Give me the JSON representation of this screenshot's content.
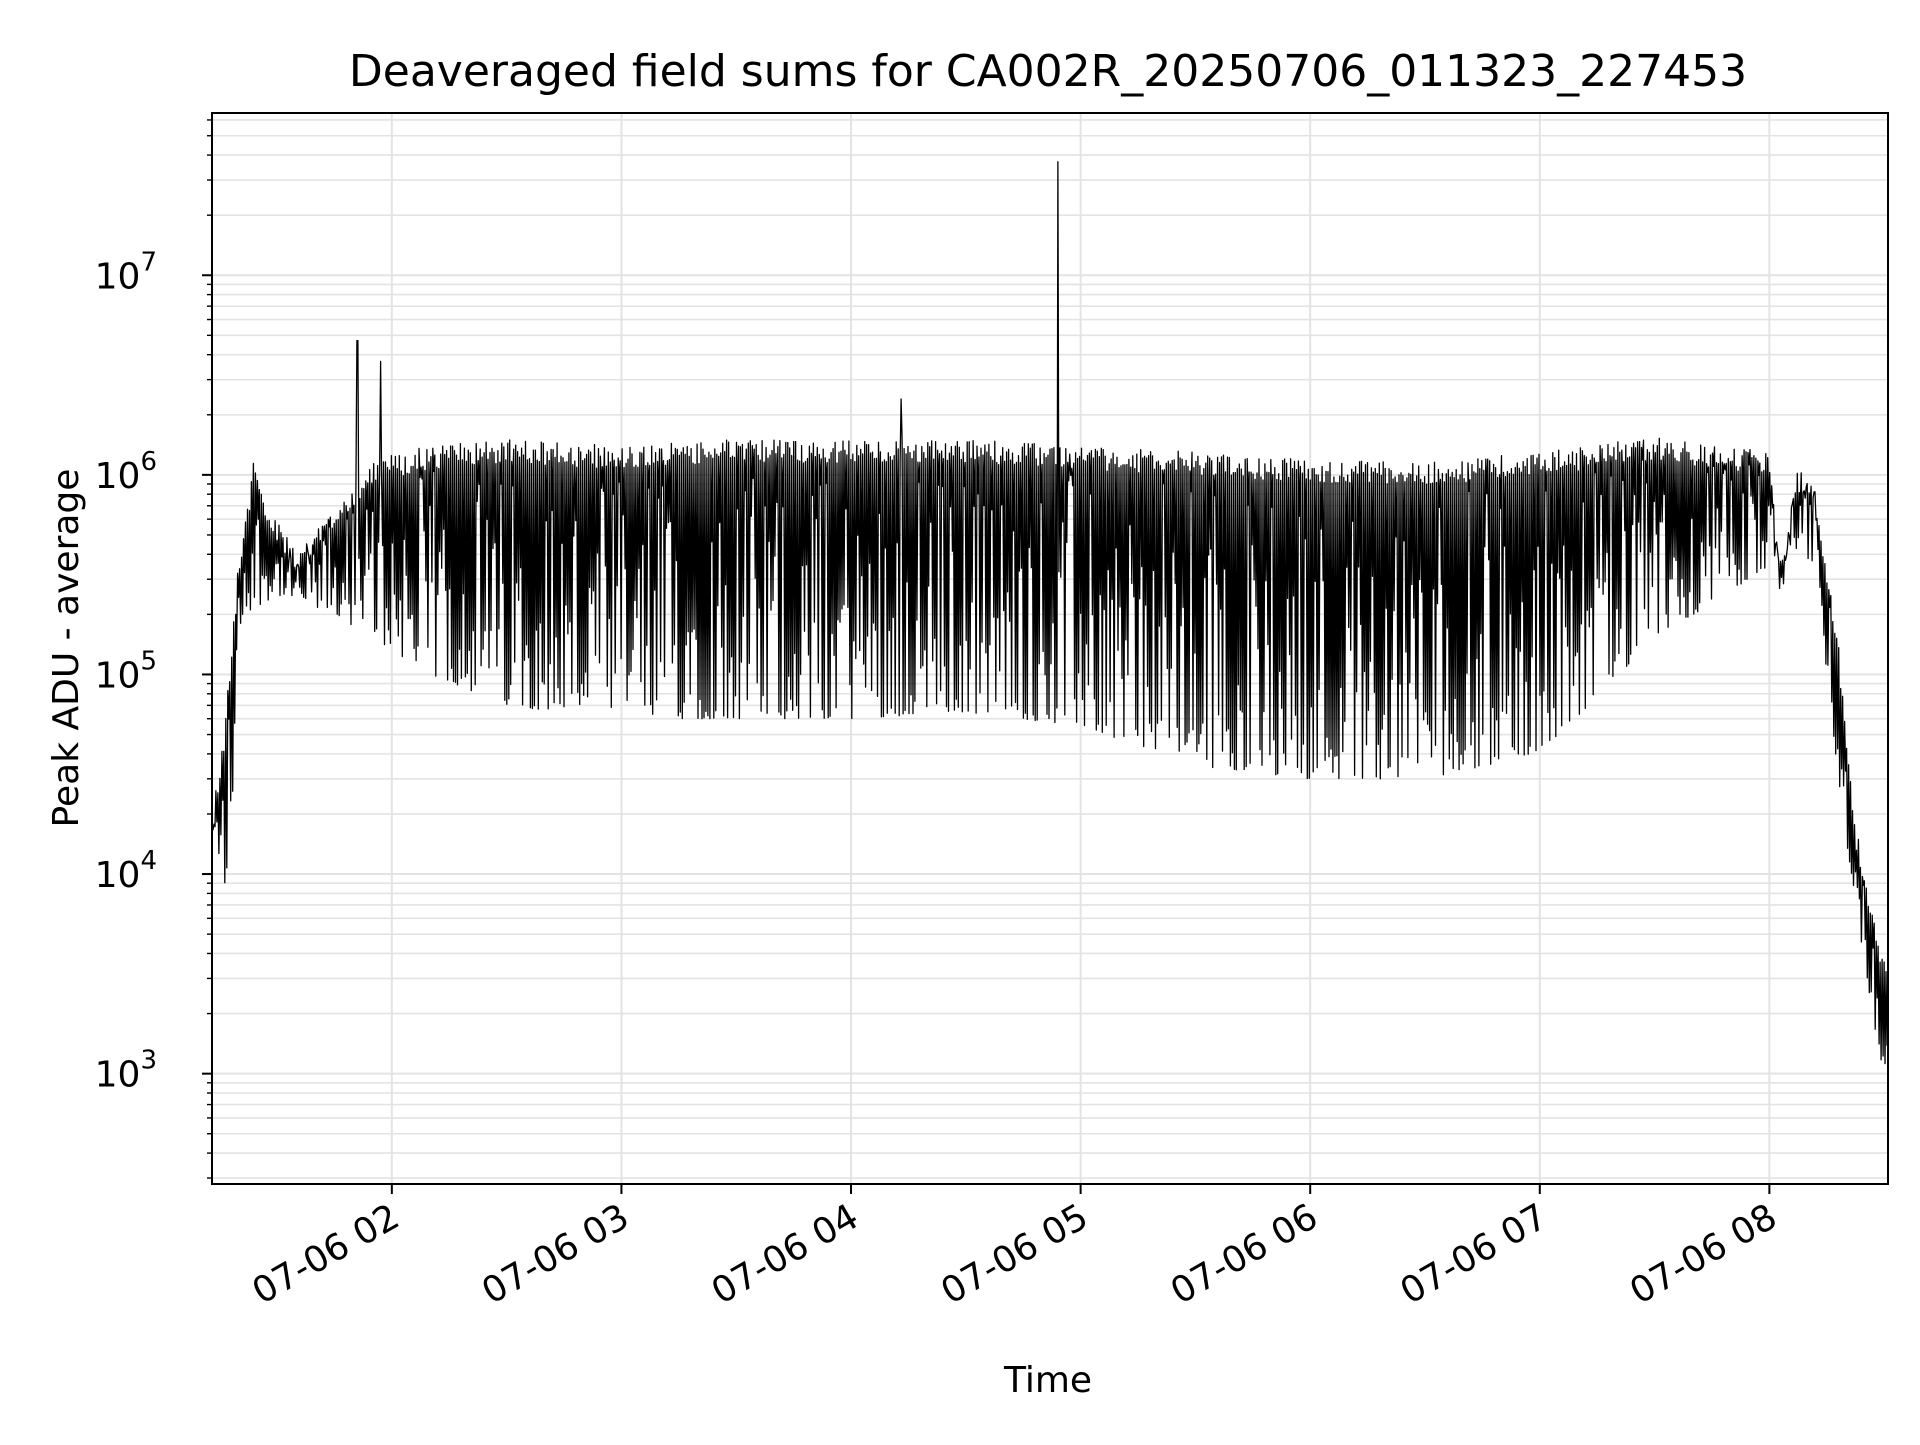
{
  "chart_data": {
    "type": "line",
    "title": "Deaveraged field sums for CA002R_20250706_011323_227453",
    "xlabel": "Time",
    "ylabel": "Peak ADU - average",
    "xscale": "time",
    "yscale": "log",
    "xlim": [
      "07-06 01:13",
      "07-06 08:31"
    ],
    "ylim": [
      280,
      65000000
    ],
    "xticks": [
      "07-06 02",
      "07-06 03",
      "07-06 04",
      "07-06 05",
      "07-06 06",
      "07-06 07",
      "07-06 08"
    ],
    "yticks": [
      {
        "base": "10",
        "exp": "3"
      },
      {
        "base": "10",
        "exp": "4"
      },
      {
        "base": "10",
        "exp": "5"
      },
      {
        "base": "10",
        "exp": "6"
      },
      {
        "base": "10",
        "exp": "7"
      }
    ],
    "grid": true,
    "series": [
      {
        "color": "#000000",
        "upper_envelope": [
          [
            "07-06 01:13",
            20000
          ],
          [
            "07-06 01:16",
            50000
          ],
          [
            "07-06 01:20",
            400000
          ],
          [
            "07-06 01:24",
            1200000
          ],
          [
            "07-06 01:28",
            700000
          ],
          [
            "07-06 01:35",
            400000
          ],
          [
            "07-06 01:45",
            700000
          ],
          [
            "07-06 01:55",
            1200000
          ],
          [
            "07-06 02:10",
            1400000
          ],
          [
            "07-06 02:30",
            1500000
          ],
          [
            "07-06 03:00",
            1400000
          ],
          [
            "07-06 03:30",
            1500000
          ],
          [
            "07-06 04:00",
            1500000
          ],
          [
            "07-06 04:30",
            1500000
          ],
          [
            "07-06 05:00",
            1400000
          ],
          [
            "07-06 05:30",
            1300000
          ],
          [
            "07-06 06:00",
            1200000
          ],
          [
            "07-06 06:30",
            1150000
          ],
          [
            "07-06 07:00",
            1300000
          ],
          [
            "07-06 07:30",
            1550000
          ],
          [
            "07-06 08:00",
            1300000
          ],
          [
            "07-06 08:03",
            300000
          ],
          [
            "07-06 08:07",
            1100000
          ],
          [
            "07-06 08:12",
            900000
          ],
          [
            "07-06 08:18",
            150000
          ],
          [
            "07-06 08:22",
            20000
          ],
          [
            "07-06 08:31",
            3000
          ]
        ],
        "lower_envelope": [
          [
            "07-06 01:13",
            15000
          ],
          [
            "07-06 01:17",
            8000
          ],
          [
            "07-06 01:21",
            200000
          ],
          [
            "07-06 01:30",
            250000
          ],
          [
            "07-06 01:45",
            200000
          ],
          [
            "07-06 02:10",
            100000
          ],
          [
            "07-06 02:30",
            70000
          ],
          [
            "07-06 03:00",
            60000
          ],
          [
            "07-06 03:30",
            60000
          ],
          [
            "07-06 04:00",
            60000
          ],
          [
            "07-06 04:30",
            65000
          ],
          [
            "07-06 05:00",
            55000
          ],
          [
            "07-06 05:30",
            35000
          ],
          [
            "07-06 06:00",
            30000
          ],
          [
            "07-06 06:30",
            30000
          ],
          [
            "07-06 07:00",
            40000
          ],
          [
            "07-06 07:30",
            150000
          ],
          [
            "07-06 08:00",
            350000
          ],
          [
            "07-06 08:05",
            400000
          ],
          [
            "07-06 08:12",
            350000
          ],
          [
            "07-06 08:18",
            30000
          ],
          [
            "07-06 08:22",
            8000
          ],
          [
            "07-06 08:28",
            1500
          ],
          [
            "07-06 08:31",
            800
          ]
        ],
        "spikes": [
          [
            "07-06 01:51",
            4700000
          ],
          [
            "07-06 01:57",
            3700000
          ],
          [
            "07-06 04:13",
            2400000
          ],
          [
            "07-06 04:54",
            37000000
          ]
        ]
      }
    ]
  }
}
